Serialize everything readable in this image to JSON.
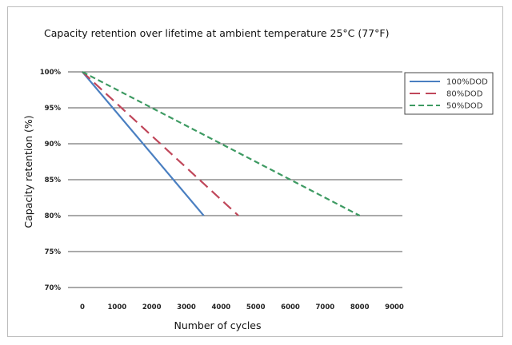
{
  "chart_data": {
    "type": "line",
    "title": "Capacity retention over lifetime at ambient temperature 25°C (77°F)",
    "xlabel": "Number of cycles",
    "ylabel": "Capacity retention (%)",
    "xlim": [
      0,
      9000
    ],
    "ylim": [
      70,
      100
    ],
    "x_ticks": [
      "0",
      "1000",
      "2000",
      "3000",
      "4000",
      "5000",
      "6000",
      "7000",
      "8000",
      "9000"
    ],
    "y_ticks": [
      "100%",
      "95%",
      "90%",
      "85%",
      "80%",
      "75%",
      "70%"
    ],
    "grid": "horizontal",
    "legend_position": "top-right",
    "series": [
      {
        "name": "100%DOD",
        "color": "#4a7fc1",
        "dash": "solid",
        "x": [
          0,
          3500
        ],
        "y": [
          100,
          80
        ]
      },
      {
        "name": "80%DOD",
        "color": "#c0475a",
        "dash": "long-dash",
        "x": [
          0,
          4500
        ],
        "y": [
          100,
          80
        ]
      },
      {
        "name": "50%DOD",
        "color": "#3d9a62",
        "dash": "short-dash",
        "x": [
          0,
          8000
        ],
        "y": [
          100,
          80
        ]
      }
    ]
  }
}
